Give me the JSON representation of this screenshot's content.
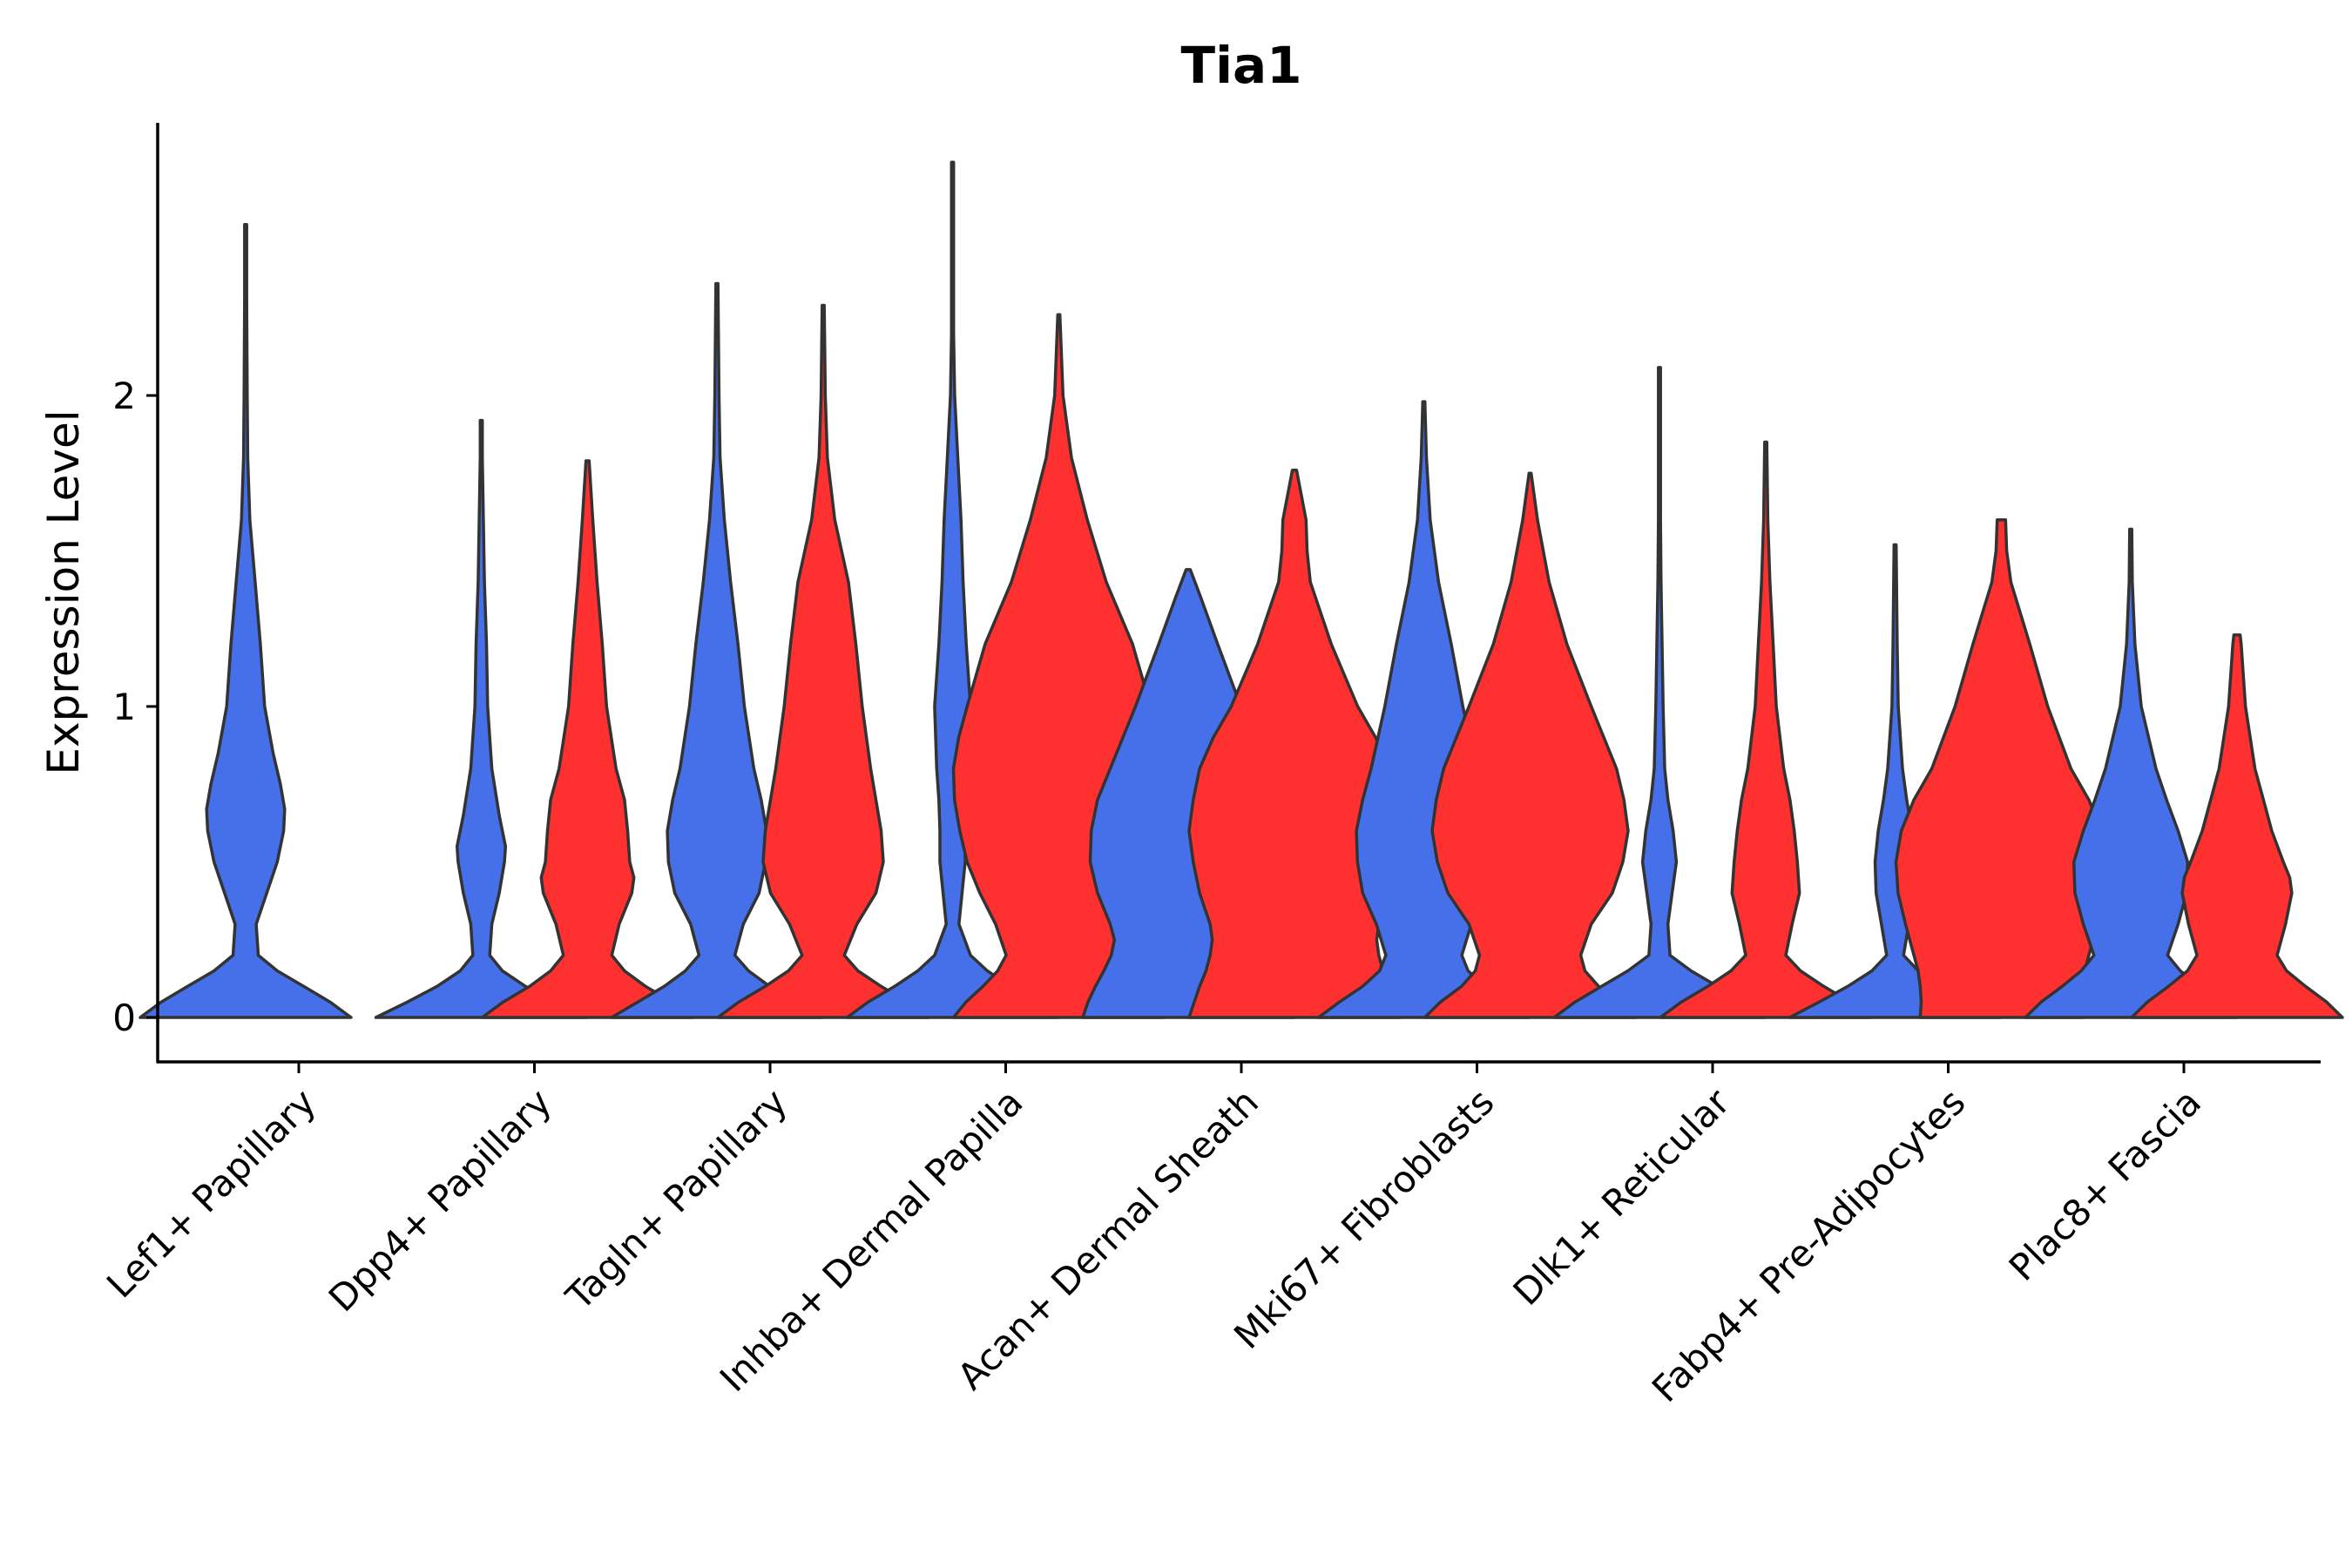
{
  "chart_data": {
    "type": "violin",
    "title": "Tia1",
    "xlabel": "",
    "ylabel": "Expression Level",
    "ylim": [
      -0.14,
      2.9
    ],
    "yticks": [
      0,
      1,
      2
    ],
    "grid": false,
    "legend": "none",
    "colors": {
      "group1": "#4570ea",
      "group2": "#ff3030",
      "outline": "#333333"
    },
    "categories": [
      "Lef1+ Papillary",
      "Dpp4+ Papillary",
      "Tagln+ Papillary",
      "Inhba+ Dermal Papilla",
      "Acan+ Dermal Sheath",
      "Mki67+ Fibroblasts",
      "Dlk1+ Reticular",
      "Fabp4+ Pre-Adipocytes",
      "Plac8+ Fascia"
    ],
    "violins": [
      {
        "category": "Lef1+ Papillary",
        "group": 1,
        "max": 2.55,
        "profile": [
          [
            0,
            1.0
          ],
          [
            0.05,
            0.8
          ],
          [
            0.1,
            0.55
          ],
          [
            0.15,
            0.3
          ],
          [
            0.2,
            0.12
          ],
          [
            0.3,
            0.1
          ],
          [
            0.4,
            0.2
          ],
          [
            0.5,
            0.3
          ],
          [
            0.6,
            0.36
          ],
          [
            0.67,
            0.37
          ],
          [
            0.75,
            0.33
          ],
          [
            0.85,
            0.26
          ],
          [
            1.0,
            0.18
          ],
          [
            1.2,
            0.14
          ],
          [
            1.4,
            0.09
          ],
          [
            1.6,
            0.04
          ],
          [
            1.8,
            0.02
          ],
          [
            2.0,
            0.015
          ],
          [
            2.3,
            0.01
          ],
          [
            2.55,
            0.005
          ]
        ]
      },
      {
        "category": "Dpp4+ Papillary",
        "group": 1,
        "max": 1.92,
        "profile": [
          [
            0,
            1.0
          ],
          [
            0.05,
            0.7
          ],
          [
            0.1,
            0.42
          ],
          [
            0.15,
            0.2
          ],
          [
            0.2,
            0.08
          ],
          [
            0.3,
            0.1
          ],
          [
            0.4,
            0.17
          ],
          [
            0.5,
            0.22
          ],
          [
            0.55,
            0.23
          ],
          [
            0.65,
            0.17
          ],
          [
            0.8,
            0.1
          ],
          [
            1.0,
            0.06
          ],
          [
            1.2,
            0.05
          ],
          [
            1.4,
            0.03
          ],
          [
            1.6,
            0.02
          ],
          [
            1.8,
            0.01
          ],
          [
            1.92,
            0.005
          ]
        ]
      },
      {
        "category": "Dpp4+ Papillary",
        "group": 2,
        "max": 1.79,
        "profile": [
          [
            0,
            1.0
          ],
          [
            0.05,
            0.8
          ],
          [
            0.1,
            0.55
          ],
          [
            0.15,
            0.35
          ],
          [
            0.2,
            0.23
          ],
          [
            0.3,
            0.3
          ],
          [
            0.4,
            0.42
          ],
          [
            0.45,
            0.44
          ],
          [
            0.5,
            0.4
          ],
          [
            0.6,
            0.38
          ],
          [
            0.7,
            0.35
          ],
          [
            0.8,
            0.27
          ],
          [
            1.0,
            0.18
          ],
          [
            1.2,
            0.14
          ],
          [
            1.4,
            0.09
          ],
          [
            1.6,
            0.05
          ],
          [
            1.79,
            0.015
          ]
        ]
      },
      {
        "category": "Tagln+ Papillary",
        "group": 1,
        "max": 2.36,
        "profile": [
          [
            0,
            1.0
          ],
          [
            0.05,
            0.75
          ],
          [
            0.1,
            0.5
          ],
          [
            0.15,
            0.3
          ],
          [
            0.2,
            0.17
          ],
          [
            0.3,
            0.25
          ],
          [
            0.4,
            0.4
          ],
          [
            0.5,
            0.46
          ],
          [
            0.6,
            0.47
          ],
          [
            0.7,
            0.42
          ],
          [
            0.8,
            0.35
          ],
          [
            1.0,
            0.26
          ],
          [
            1.2,
            0.2
          ],
          [
            1.4,
            0.13
          ],
          [
            1.6,
            0.07
          ],
          [
            1.8,
            0.03
          ],
          [
            2.0,
            0.02
          ],
          [
            2.36,
            0.005
          ]
        ]
      },
      {
        "category": "Tagln+ Papillary",
        "group": 2,
        "max": 2.29,
        "profile": [
          [
            0,
            1.0
          ],
          [
            0.05,
            0.8
          ],
          [
            0.1,
            0.55
          ],
          [
            0.15,
            0.33
          ],
          [
            0.2,
            0.2
          ],
          [
            0.3,
            0.32
          ],
          [
            0.4,
            0.5
          ],
          [
            0.5,
            0.57
          ],
          [
            0.6,
            0.55
          ],
          [
            0.7,
            0.5
          ],
          [
            0.8,
            0.45
          ],
          [
            1.0,
            0.37
          ],
          [
            1.2,
            0.31
          ],
          [
            1.4,
            0.24
          ],
          [
            1.6,
            0.11
          ],
          [
            1.8,
            0.04
          ],
          [
            2.0,
            0.02
          ],
          [
            2.29,
            0.005
          ]
        ]
      },
      {
        "category": "Inhba+ Dermal Papilla",
        "group": 1,
        "max": 2.75,
        "profile": [
          [
            0,
            1.0
          ],
          [
            0.05,
            0.8
          ],
          [
            0.1,
            0.55
          ],
          [
            0.15,
            0.33
          ],
          [
            0.2,
            0.17
          ],
          [
            0.3,
            0.06
          ],
          [
            0.4,
            0.09
          ],
          [
            0.5,
            0.12
          ],
          [
            0.6,
            0.12
          ],
          [
            0.7,
            0.13
          ],
          [
            0.8,
            0.15
          ],
          [
            1.0,
            0.17
          ],
          [
            1.2,
            0.13
          ],
          [
            1.4,
            0.1
          ],
          [
            1.6,
            0.08
          ],
          [
            1.8,
            0.05
          ],
          [
            2.0,
            0.02
          ],
          [
            2.2,
            0.01
          ],
          [
            2.5,
            0.005
          ],
          [
            2.75,
            0.003
          ]
        ]
      },
      {
        "category": "Inhba+ Dermal Papilla",
        "group": 2,
        "max": 2.26,
        "profile": [
          [
            0,
            1.0
          ],
          [
            0.05,
            0.88
          ],
          [
            0.1,
            0.72
          ],
          [
            0.15,
            0.58
          ],
          [
            0.2,
            0.5
          ],
          [
            0.3,
            0.6
          ],
          [
            0.4,
            0.75
          ],
          [
            0.5,
            0.87
          ],
          [
            0.6,
            0.94
          ],
          [
            0.7,
            0.99
          ],
          [
            0.8,
            1.0
          ],
          [
            0.9,
            0.95
          ],
          [
            1.0,
            0.87
          ],
          [
            1.2,
            0.7
          ],
          [
            1.4,
            0.45
          ],
          [
            1.6,
            0.27
          ],
          [
            1.8,
            0.12
          ],
          [
            2.0,
            0.04
          ],
          [
            2.26,
            0.01
          ]
        ]
      },
      {
        "category": "Acan+ Dermal Sheath",
        "group": 1,
        "max": 1.44,
        "profile": [
          [
            0,
            1.0
          ],
          [
            0.05,
            0.95
          ],
          [
            0.1,
            0.88
          ],
          [
            0.15,
            0.8
          ],
          [
            0.2,
            0.73
          ],
          [
            0.25,
            0.7
          ],
          [
            0.3,
            0.74
          ],
          [
            0.4,
            0.86
          ],
          [
            0.5,
            0.93
          ],
          [
            0.6,
            0.92
          ],
          [
            0.7,
            0.86
          ],
          [
            0.8,
            0.74
          ],
          [
            1.0,
            0.5
          ],
          [
            1.2,
            0.28
          ],
          [
            1.35,
            0.12
          ],
          [
            1.44,
            0.02
          ]
        ]
      },
      {
        "category": "Acan+ Dermal Sheath",
        "group": 2,
        "max": 1.76,
        "profile": [
          [
            0,
            1.0
          ],
          [
            0.05,
            0.95
          ],
          [
            0.1,
            0.9
          ],
          [
            0.15,
            0.84
          ],
          [
            0.2,
            0.8
          ],
          [
            0.25,
            0.78
          ],
          [
            0.3,
            0.8
          ],
          [
            0.4,
            0.9
          ],
          [
            0.5,
            0.96
          ],
          [
            0.6,
            1.0
          ],
          [
            0.7,
            0.96
          ],
          [
            0.8,
            0.9
          ],
          [
            0.9,
            0.77
          ],
          [
            1.0,
            0.6
          ],
          [
            1.2,
            0.35
          ],
          [
            1.4,
            0.15
          ],
          [
            1.5,
            0.12
          ],
          [
            1.6,
            0.11
          ],
          [
            1.76,
            0.02
          ]
        ]
      },
      {
        "category": "Mki67+ Fibroblasts",
        "group": 1,
        "max": 1.98,
        "profile": [
          [
            0,
            1.0
          ],
          [
            0.05,
            0.8
          ],
          [
            0.1,
            0.58
          ],
          [
            0.15,
            0.42
          ],
          [
            0.2,
            0.36
          ],
          [
            0.3,
            0.45
          ],
          [
            0.4,
            0.58
          ],
          [
            0.5,
            0.63
          ],
          [
            0.6,
            0.64
          ],
          [
            0.7,
            0.58
          ],
          [
            0.8,
            0.5
          ],
          [
            1.0,
            0.37
          ],
          [
            1.2,
            0.26
          ],
          [
            1.4,
            0.14
          ],
          [
            1.6,
            0.06
          ],
          [
            1.8,
            0.025
          ],
          [
            1.98,
            0.005
          ]
        ]
      },
      {
        "category": "Mki67+ Fibroblasts",
        "group": 2,
        "max": 1.75,
        "profile": [
          [
            0,
            1.0
          ],
          [
            0.05,
            0.85
          ],
          [
            0.1,
            0.65
          ],
          [
            0.15,
            0.52
          ],
          [
            0.2,
            0.48
          ],
          [
            0.3,
            0.58
          ],
          [
            0.4,
            0.78
          ],
          [
            0.5,
            0.88
          ],
          [
            0.6,
            0.93
          ],
          [
            0.7,
            0.89
          ],
          [
            0.8,
            0.82
          ],
          [
            1.0,
            0.58
          ],
          [
            1.2,
            0.35
          ],
          [
            1.4,
            0.18
          ],
          [
            1.6,
            0.07
          ],
          [
            1.75,
            0.01
          ]
        ]
      },
      {
        "category": "Dlk1+ Reticular",
        "group": 1,
        "max": 2.09,
        "profile": [
          [
            0,
            1.0
          ],
          [
            0.05,
            0.8
          ],
          [
            0.1,
            0.55
          ],
          [
            0.15,
            0.3
          ],
          [
            0.2,
            0.1
          ],
          [
            0.3,
            0.08
          ],
          [
            0.4,
            0.12
          ],
          [
            0.5,
            0.16
          ],
          [
            0.6,
            0.13
          ],
          [
            0.7,
            0.08
          ],
          [
            0.8,
            0.05
          ],
          [
            1.0,
            0.035
          ],
          [
            1.2,
            0.025
          ],
          [
            1.4,
            0.015
          ],
          [
            1.6,
            0.01
          ],
          [
            2.09,
            0.005
          ]
        ]
      },
      {
        "category": "Dlk1+ Reticular",
        "group": 2,
        "max": 1.85,
        "profile": [
          [
            0,
            1.0
          ],
          [
            0.05,
            0.8
          ],
          [
            0.1,
            0.55
          ],
          [
            0.15,
            0.33
          ],
          [
            0.2,
            0.19
          ],
          [
            0.3,
            0.25
          ],
          [
            0.4,
            0.32
          ],
          [
            0.5,
            0.3
          ],
          [
            0.6,
            0.27
          ],
          [
            0.7,
            0.23
          ],
          [
            0.8,
            0.17
          ],
          [
            1.0,
            0.1
          ],
          [
            1.2,
            0.07
          ],
          [
            1.4,
            0.04
          ],
          [
            1.6,
            0.02
          ],
          [
            1.85,
            0.005
          ]
        ]
      },
      {
        "category": "Fabp4+ Pre-Adipocytes",
        "group": 1,
        "max": 1.52,
        "profile": [
          [
            0,
            1.0
          ],
          [
            0.05,
            0.72
          ],
          [
            0.1,
            0.45
          ],
          [
            0.15,
            0.22
          ],
          [
            0.2,
            0.08
          ],
          [
            0.3,
            0.13
          ],
          [
            0.4,
            0.18
          ],
          [
            0.5,
            0.19
          ],
          [
            0.6,
            0.16
          ],
          [
            0.7,
            0.11
          ],
          [
            0.8,
            0.07
          ],
          [
            1.0,
            0.03
          ],
          [
            1.2,
            0.02
          ],
          [
            1.52,
            0.005
          ]
        ]
      },
      {
        "category": "Fabp4+ Pre-Adipocytes",
        "group": 2,
        "max": 1.6,
        "profile": [
          [
            0,
            0.77
          ],
          [
            0.05,
            0.76
          ],
          [
            0.1,
            0.77
          ],
          [
            0.15,
            0.79
          ],
          [
            0.2,
            0.83
          ],
          [
            0.3,
            0.91
          ],
          [
            0.4,
            0.98
          ],
          [
            0.5,
            1.0
          ],
          [
            0.6,
            0.95
          ],
          [
            0.7,
            0.83
          ],
          [
            0.8,
            0.66
          ],
          [
            1.0,
            0.44
          ],
          [
            1.2,
            0.27
          ],
          [
            1.4,
            0.09
          ],
          [
            1.5,
            0.05
          ],
          [
            1.6,
            0.04
          ]
        ]
      },
      {
        "category": "Plac8+ Fascia",
        "group": 1,
        "max": 1.57,
        "profile": [
          [
            0,
            1.0
          ],
          [
            0.05,
            0.85
          ],
          [
            0.1,
            0.65
          ],
          [
            0.15,
            0.47
          ],
          [
            0.2,
            0.35
          ],
          [
            0.3,
            0.45
          ],
          [
            0.4,
            0.53
          ],
          [
            0.5,
            0.54
          ],
          [
            0.6,
            0.45
          ],
          [
            0.7,
            0.34
          ],
          [
            0.8,
            0.24
          ],
          [
            1.0,
            0.1
          ],
          [
            1.2,
            0.04
          ],
          [
            1.4,
            0.015
          ],
          [
            1.57,
            0.005
          ]
        ]
      },
      {
        "category": "Plac8+ Fascia",
        "group": 2,
        "max": 1.23,
        "profile": [
          [
            0,
            1.0
          ],
          [
            0.05,
            0.85
          ],
          [
            0.1,
            0.65
          ],
          [
            0.15,
            0.47
          ],
          [
            0.2,
            0.38
          ],
          [
            0.3,
            0.46
          ],
          [
            0.4,
            0.52
          ],
          [
            0.45,
            0.5
          ],
          [
            0.5,
            0.44
          ],
          [
            0.6,
            0.33
          ],
          [
            0.7,
            0.25
          ],
          [
            0.8,
            0.17
          ],
          [
            1.0,
            0.08
          ],
          [
            1.2,
            0.04
          ],
          [
            1.23,
            0.03
          ]
        ]
      }
    ]
  }
}
